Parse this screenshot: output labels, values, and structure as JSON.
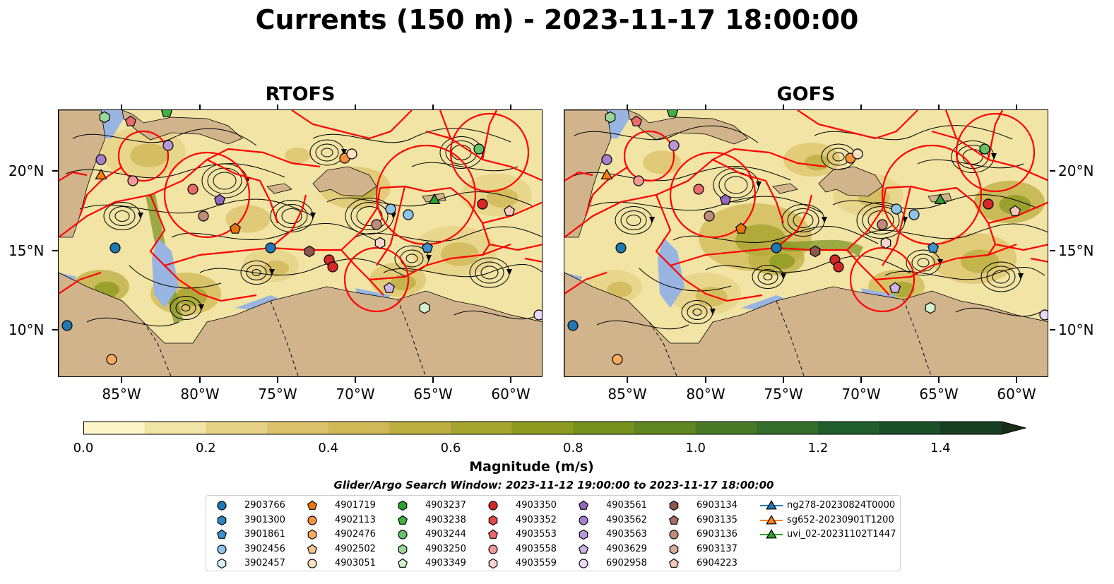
{
  "title": "Currents (150 m) - 2023-11-17 18:00:00",
  "panels": [
    {
      "title": "RTOFS"
    },
    {
      "title": "GOFS"
    }
  ],
  "axes": {
    "lat_ticks": [
      "10°N",
      "15°N",
      "20°N"
    ],
    "lon_ticks": [
      "85°W",
      "80°W",
      "75°W",
      "70°W",
      "65°W",
      "60°W"
    ]
  },
  "colorbar": {
    "label": "Magnitude (m/s)",
    "ticks": [
      "0.0",
      "0.2",
      "0.4",
      "0.6",
      "0.8",
      "1.0",
      "1.2",
      "1.4"
    ],
    "range": [
      0.0,
      1.5
    ],
    "extend": "max",
    "colors": [
      "#fcf6c8",
      "#f1e4a4",
      "#e6d286",
      "#dcc36b",
      "#d0b856",
      "#bcae41",
      "#a4a42e",
      "#8c9b20",
      "#76911c",
      "#5f8620",
      "#487a25",
      "#326d2a",
      "#205f2d",
      "#1a4f28",
      "#183e22",
      "#1a2c1a"
    ]
  },
  "map_colors": {
    "land": "#d2b48c",
    "shelf": "#98b4e0",
    "eez_lines": "#ff0000",
    "streamlines": "#000000"
  },
  "legend": {
    "subtitle": "Glider/Argo Search Window: 2023-11-12 19:00:00 to 2023-11-17 18:00:00",
    "items": [
      {
        "label": "2903766",
        "marker": "circle",
        "color": "#1f77b4"
      },
      {
        "label": "3901300",
        "marker": "hexagon",
        "color": "#2f86c0"
      },
      {
        "label": "3901861",
        "marker": "pentagon",
        "color": "#3a92d0"
      },
      {
        "label": "3902456",
        "marker": "circle",
        "color": "#8ec3ea"
      },
      {
        "label": "3902457",
        "marker": "hexagon",
        "color": "#d9ecfa"
      },
      {
        "label": "4901719",
        "marker": "pentagon",
        "color": "#e6780b"
      },
      {
        "label": "4902113",
        "marker": "circle",
        "color": "#f7923a"
      },
      {
        "label": "4902476",
        "marker": "hexagon",
        "color": "#fbaa60"
      },
      {
        "label": "4902502",
        "marker": "pentagon",
        "color": "#fdc58e"
      },
      {
        "label": "4903051",
        "marker": "circle",
        "color": "#fee0c2"
      },
      {
        "label": "4903237",
        "marker": "hexagon",
        "color": "#2ca02c"
      },
      {
        "label": "4903238",
        "marker": "pentagon",
        "color": "#3fb13f"
      },
      {
        "label": "4903244",
        "marker": "circle",
        "color": "#66c266"
      },
      {
        "label": "4903250",
        "marker": "hexagon",
        "color": "#98d998"
      },
      {
        "label": "4903349",
        "marker": "pentagon",
        "color": "#d3f2d0"
      },
      {
        "label": "4903350",
        "marker": "circle",
        "color": "#d62728"
      },
      {
        "label": "4903352",
        "marker": "hexagon",
        "color": "#e0494a"
      },
      {
        "label": "4903553",
        "marker": "pentagon",
        "color": "#ea6b6b"
      },
      {
        "label": "4903558",
        "marker": "circle",
        "color": "#f29a99"
      },
      {
        "label": "4903559",
        "marker": "hexagon",
        "color": "#fbd3d1"
      },
      {
        "label": "4903561",
        "marker": "pentagon",
        "color": "#9467bd"
      },
      {
        "label": "4903562",
        "marker": "circle",
        "color": "#a57fcc"
      },
      {
        "label": "4903563",
        "marker": "hexagon",
        "color": "#b898d9"
      },
      {
        "label": "4903629",
        "marker": "pentagon",
        "color": "#cdb4e6"
      },
      {
        "label": "6902958",
        "marker": "circle",
        "color": "#ead9f8"
      },
      {
        "label": "6903134",
        "marker": "hexagon",
        "color": "#8c564b"
      },
      {
        "label": "6903135",
        "marker": "pentagon",
        "color": "#a3705f"
      },
      {
        "label": "6903136",
        "marker": "circle",
        "color": "#c08a7c"
      },
      {
        "label": "6903137",
        "marker": "hexagon",
        "color": "#d9ab9c"
      },
      {
        "label": "6904223",
        "marker": "pentagon",
        "color": "#f7c9bd"
      },
      {
        "label": "ng278-20230824T0000",
        "marker": "triangle-line",
        "color": "#1f77b4"
      },
      {
        "label": "sg652-20230901T1200",
        "marker": "triangle-line",
        "color": "#ff7f0e"
      },
      {
        "label": "uvi_02-20231102T1447",
        "marker": "triangle-line",
        "color": "#2ca02c"
      }
    ]
  }
}
